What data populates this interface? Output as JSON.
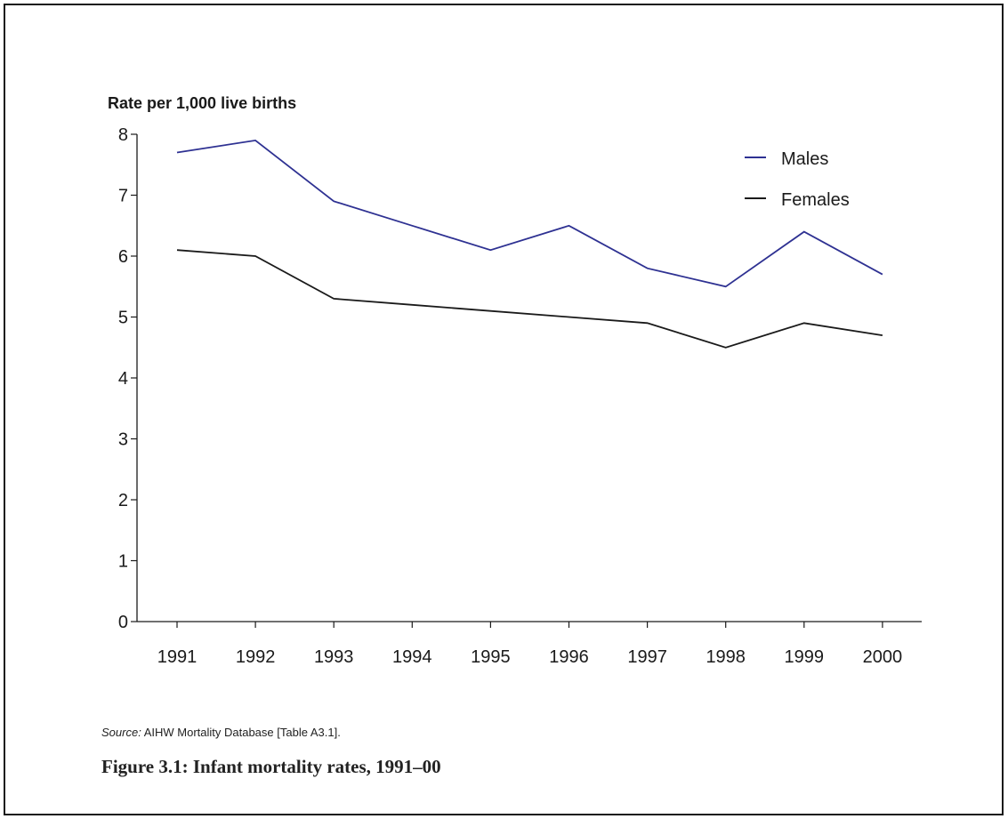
{
  "chart_data": {
    "type": "line",
    "ylabel": "Rate per 1,000 live births",
    "xlabel": "",
    "ylim": [
      0,
      8
    ],
    "yticks": [
      0,
      1,
      2,
      3,
      4,
      5,
      6,
      7,
      8
    ],
    "categories": [
      "1991",
      "1992",
      "1993",
      "1994",
      "1995",
      "1996",
      "1997",
      "1998",
      "1999",
      "2000"
    ],
    "series": [
      {
        "name": "Males",
        "color": "#2e3192",
        "values": [
          7.7,
          7.9,
          6.9,
          6.5,
          6.1,
          6.5,
          5.8,
          5.5,
          6.4,
          5.7
        ]
      },
      {
        "name": "Females",
        "color": "#1a1a1a",
        "values": [
          6.1,
          6.0,
          5.3,
          5.2,
          5.1,
          5.0,
          4.9,
          4.5,
          4.9,
          4.7
        ]
      }
    ],
    "legend": "top-right",
    "grid": false
  },
  "source": {
    "label": "Source:",
    "text": " AIHW Mortality Database [Table A3.1]."
  },
  "caption": "Figure 3.1: Infant mortality rates, 1991–00"
}
